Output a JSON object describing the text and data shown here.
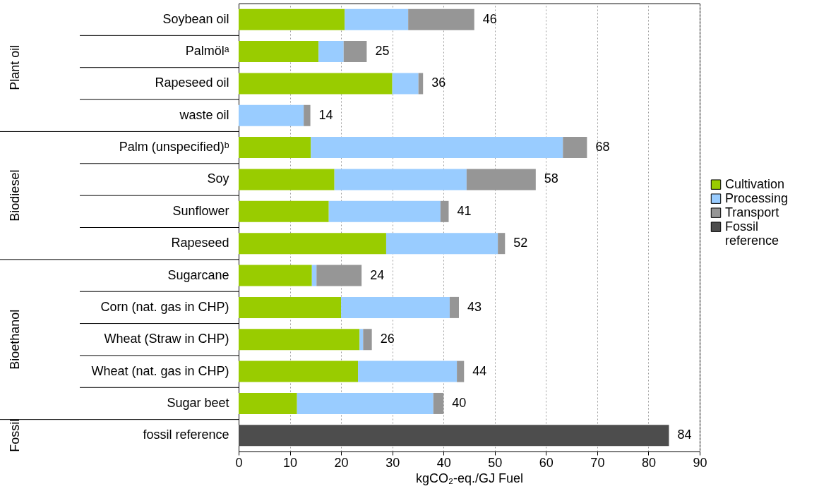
{
  "chart_data": {
    "type": "bar",
    "orientation": "horizontal",
    "stacked": true,
    "categories": [
      "Soybean oil",
      "Palmölᵃ",
      "Rapeseed oil",
      "waste oil",
      "Palm (unspecified)ᵇ",
      "Soy",
      "Sunflower",
      "Rapeseed",
      "Sugarcane",
      "Corn (nat. gas in CHP)",
      "Wheat (Straw in CHP)",
      "Wheat (nat. gas in CHP)",
      "Sugar beet",
      "fossil reference"
    ],
    "series": [
      {
        "name": "Cultivation",
        "color": "#99cc00",
        "values": [
          20.7,
          15.6,
          30.0,
          null,
          14.1,
          18.7,
          17.6,
          28.8,
          14.3,
          20.0,
          23.6,
          23.3,
          11.4,
          null
        ]
      },
      {
        "name": "Processing",
        "color": "#99ccff",
        "values": [
          12.4,
          4.9,
          5.1,
          12.7,
          49.2,
          25.8,
          21.8,
          21.8,
          0.9,
          21.2,
          0.7,
          19.3,
          26.6,
          null
        ]
      },
      {
        "name": "Transport",
        "color": "#969696",
        "values": [
          12.9,
          4.5,
          0.9,
          1.3,
          4.7,
          13.5,
          1.6,
          1.4,
          8.8,
          1.8,
          1.7,
          1.4,
          2.0,
          null
        ]
      },
      {
        "name": "Fossil reference",
        "color": "#4d4d4d",
        "values": [
          null,
          null,
          null,
          null,
          null,
          null,
          null,
          null,
          null,
          null,
          null,
          null,
          null,
          84
        ]
      }
    ],
    "totals": [
      "46",
      "25",
      "36",
      "14",
      "68",
      "58",
      "41",
      "52",
      "24",
      "43",
      "26",
      "44",
      "40",
      "84"
    ],
    "xlabel": "kgCO₂-eq./GJ Fuel",
    "xlim": [
      0,
      90
    ],
    "xticks": [
      0,
      10,
      20,
      30,
      40,
      50,
      60,
      70,
      80,
      90
    ],
    "grid": "x",
    "legend": "right",
    "annotations": [
      "Plant oil",
      "Biodiesel",
      "Bioethanol",
      "Fossil"
    ]
  }
}
